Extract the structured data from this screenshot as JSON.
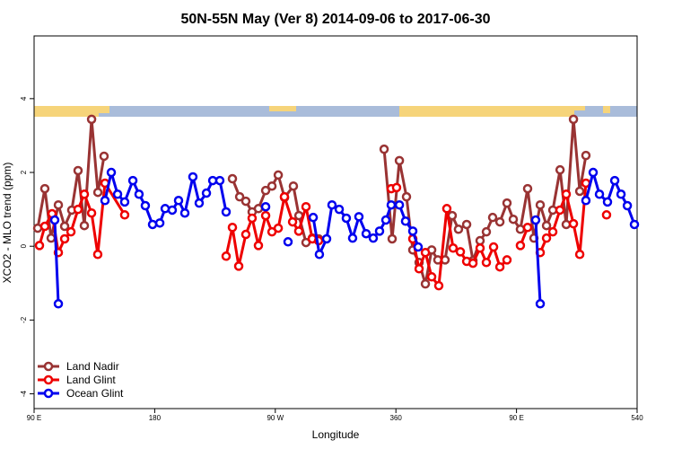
{
  "chart_data": {
    "type": "line",
    "title": "50N-55N May (Ver 8)   2014-09-06 to 2017-06-30",
    "x_label": "Longitude",
    "y_label": "XCO2 - MLO trend (ppm)",
    "xlim": [
      90,
      540
    ],
    "xticks": [
      {
        "value": 90,
        "label": "90 E"
      },
      180,
      {
        "value": 270,
        "label": "90 W"
      },
      360,
      {
        "value": 450,
        "label": "90 E"
      },
      540
    ],
    "ylim": [
      -4.4,
      5.7
    ],
    "yticks": [
      4,
      2,
      0,
      -2,
      -4
    ],
    "legend": "bottom-left",
    "series": [
      {
        "name": "Land Nadir",
        "color": "#993333",
        "x": [
          92.7,
          98,
          102.7,
          108.1,
          112.8,
          118.1,
          122.8,
          127.5,
          132.9,
          137.6,
          142.2,
          null,
          238,
          243.4,
          248,
          252.7,
          257.4,
          262.8,
          267.5,
          272.2,
          276.9,
          283.5,
          287.6,
          292.9,
          297.6,
          302.3,
          null,
          351.2,
          357.2,
          362.6,
          367.9,
          372.6,
          377.3,
          382,
          386.7,
          391.3,
          396.7,
          402,
          406.7,
          412.8,
          417.5,
          422.8,
          427.5,
          432.2,
          437.6,
          442.9,
          447.6,
          452.9,
          458.3,
          463,
          467.7,
          472.4,
          477.1,
          482.5,
          487.1,
          492.5,
          497.2,
          501.8
        ],
        "values": [
          0.49,
          1.56,
          0.22,
          1.12,
          0.54,
          0.98,
          2.05,
          0.56,
          3.44,
          1.46,
          2.44,
          null,
          1.83,
          1.34,
          1.22,
          0.93,
          1.02,
          1.51,
          1.63,
          1.93,
          1.32,
          1.63,
          0.83,
          0.1,
          0.22,
          0.2,
          null,
          2.63,
          0.2,
          2.32,
          1.34,
          -0.1,
          -0.44,
          -1.02,
          -0.1,
          -0.37,
          -0.37,
          0.83,
          0.46,
          0.59,
          -0.39,
          0.15,
          0.39,
          0.78,
          0.66,
          1.17,
          0.73,
          0.46,
          1.56,
          0.22,
          1.12,
          0.56,
          0.98,
          2.07,
          0.59,
          3.44,
          1.49,
          2.46
        ]
      },
      {
        "name": "Land Glint",
        "color": "#ee0000",
        "x": [
          94,
          98,
          103.4,
          108.1,
          112.8,
          117.5,
          122.8,
          127.5,
          132.9,
          137.5,
          142.9,
          157.6,
          null,
          233.3,
          238,
          242.7,
          248,
          252.7,
          257.4,
          262.8,
          267.5,
          272.2,
          276.8,
          282.9,
          287.5,
          292.9,
          297.6,
          302.3,
          null,
          356.5,
          360.5,
          null,
          372.6,
          377.3,
          382,
          386.7,
          392,
          398,
          402.7,
          408.1,
          412.8,
          417.5,
          422.8,
          427.5,
          432.9,
          437.6,
          442.9,
          null,
          452.9,
          458.3,
          null,
          467.7,
          472.4,
          477.1,
          482.4,
          487.1,
          492.5,
          497.2,
          501.8,
          null,
          517.2
        ],
        "values": [
          0.02,
          0.54,
          0.88,
          -0.17,
          0.2,
          0.39,
          1.0,
          1.41,
          0.9,
          -0.22,
          1.71,
          0.85,
          null,
          -0.27,
          0.51,
          -0.54,
          0.32,
          0.76,
          0.02,
          0.83,
          0.39,
          0.49,
          1.34,
          0.66,
          0.41,
          1.07,
          0.2,
          0.15,
          null,
          1.56,
          1.59,
          null,
          0.2,
          -0.61,
          -0.17,
          -0.83,
          -1.07,
          1.02,
          -0.05,
          -0.15,
          -0.41,
          -0.46,
          -0.05,
          -0.44,
          -0.02,
          -0.56,
          -0.37,
          null,
          0.02,
          0.51,
          null,
          -0.17,
          0.22,
          0.39,
          0.98,
          1.41,
          0.61,
          -0.22,
          1.71,
          null,
          0.85
        ]
      },
      {
        "name": "Ocean Glint",
        "color": "#0000ee",
        "x": [
          105.4,
          108.1,
          null,
          142.9,
          147.6,
          152.3,
          157.6,
          163.7,
          168.3,
          173,
          178.4,
          183.8,
          187.8,
          193.1,
          197.8,
          202.5,
          208.5,
          213.2,
          218.6,
          223.3,
          228.6,
          233.3,
          null,
          262.8,
          null,
          279.5,
          null,
          298.3,
          302.9,
          308.3,
          312.3,
          317.7,
          323,
          327.7,
          332.4,
          337.8,
          343.1,
          347.8,
          352.5,
          356.5,
          362.6,
          367.2,
          372.6,
          376.6,
          null,
          464.3,
          467.7,
          null,
          501.8,
          507.2,
          511.9,
          517.9,
          523.3,
          528,
          532.7,
          538
        ],
        "values": [
          0.71,
          -1.56,
          null,
          1.24,
          2.0,
          1.41,
          1.2,
          1.78,
          1.41,
          1.1,
          0.59,
          0.63,
          1.02,
          0.98,
          1.24,
          0.9,
          1.88,
          1.17,
          1.44,
          1.78,
          1.78,
          0.93,
          null,
          1.07,
          null,
          0.12,
          null,
          0.78,
          -0.22,
          0.2,
          1.12,
          1.0,
          0.76,
          0.22,
          0.8,
          0.34,
          0.22,
          0.41,
          0.71,
          1.12,
          1.12,
          0.68,
          0.41,
          -0.02,
          null,
          0.71,
          -1.56,
          null,
          1.24,
          2.0,
          1.41,
          1.2,
          1.78,
          1.41,
          1.1,
          0.59
        ]
      }
    ]
  }
}
